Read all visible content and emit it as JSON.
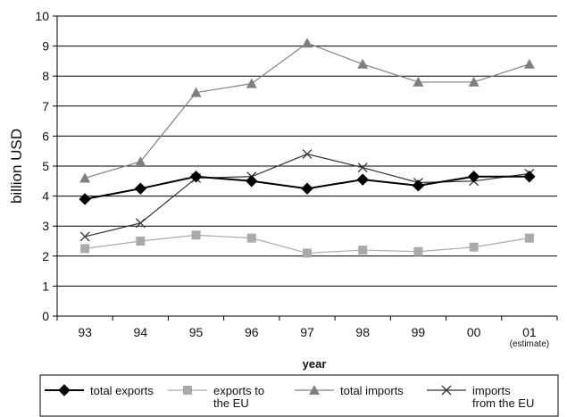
{
  "chart_data": {
    "type": "line",
    "categories": [
      "93",
      "94",
      "95",
      "96",
      "97",
      "98",
      "99",
      "00",
      "01"
    ],
    "category_note": "(estimate)",
    "xlabel": "year",
    "ylabel": "billion  USD",
    "ylim": [
      0,
      10
    ],
    "yticks": [
      0,
      1,
      2,
      3,
      4,
      5,
      6,
      7,
      8,
      9,
      10
    ],
    "grid": true,
    "legend_position": "bottom",
    "series": [
      {
        "name": "total exports",
        "name_lines": [
          "total exports"
        ],
        "color": "#000000",
        "marker": "diamond",
        "values": [
          3.9,
          4.25,
          4.65,
          4.5,
          4.25,
          4.55,
          4.35,
          4.65,
          4.65
        ]
      },
      {
        "name": "exports to the EU",
        "name_lines": [
          "exports to",
          "the EU"
        ],
        "color": "#aaaaaa",
        "marker": "square",
        "values": [
          2.25,
          2.5,
          2.7,
          2.6,
          2.1,
          2.2,
          2.15,
          2.3,
          2.6
        ]
      },
      {
        "name": "total imports",
        "name_lines": [
          "total imports"
        ],
        "color": "#7f7f7f",
        "marker": "triangle",
        "values": [
          4.6,
          5.15,
          7.45,
          7.75,
          9.1,
          8.4,
          7.8,
          7.8,
          8.4
        ]
      },
      {
        "name": "imports from the EU",
        "name_lines": [
          "imports",
          "from the EU"
        ],
        "color": "#333333",
        "marker": "x",
        "values": [
          2.65,
          3.1,
          4.6,
          4.65,
          5.4,
          4.95,
          4.45,
          4.5,
          4.75
        ]
      }
    ]
  }
}
